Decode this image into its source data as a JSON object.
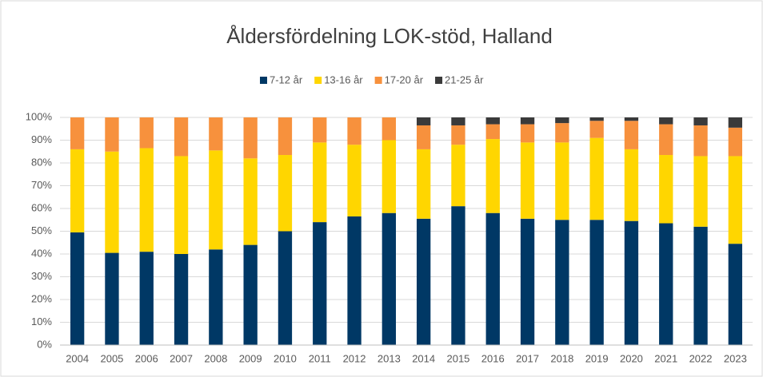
{
  "chart_data": {
    "type": "stacked_bar",
    "title": "Åldersfördelning LOK-stöd, Halland",
    "categories": [
      "2004",
      "2005",
      "2006",
      "2007",
      "2008",
      "2009",
      "2010",
      "2011",
      "2012",
      "2013",
      "2014",
      "2015",
      "2016",
      "2017",
      "2018",
      "2019",
      "2020",
      "2021",
      "2022",
      "2023"
    ],
    "series": [
      {
        "name": "7-12 år",
        "color": "#003865",
        "values": [
          49.5,
          40.5,
          41,
          40,
          42,
          44,
          50,
          54,
          56.5,
          58,
          55.5,
          61,
          58,
          55.5,
          55,
          55,
          54.5,
          53.5,
          52,
          44.5
        ]
      },
      {
        "name": "13-16 år",
        "color": "#ffd600",
        "values": [
          36.5,
          44.5,
          45.5,
          43,
          43.5,
          38,
          33.5,
          35,
          31.5,
          32,
          30.5,
          27,
          32.5,
          33.5,
          34,
          36,
          31.5,
          30,
          31,
          38.5
        ]
      },
      {
        "name": "17-20 år",
        "color": "#f7913d",
        "values": [
          14,
          15,
          13.5,
          17,
          14.5,
          18,
          16.5,
          11,
          12,
          10,
          10.5,
          8.5,
          6.5,
          8,
          8.5,
          7.5,
          12.5,
          13.5,
          13.5,
          12.5
        ]
      },
      {
        "name": "21-25 år",
        "color": "#3a3a3a",
        "values": [
          0,
          0,
          0,
          0,
          0,
          0,
          0,
          0,
          0,
          0,
          3.5,
          3.5,
          3,
          3,
          2.5,
          1.5,
          1.5,
          3,
          3.5,
          4.5
        ]
      }
    ],
    "ylim": [
      0,
      100
    ],
    "yticks": [
      {
        "value": 0,
        "label": "0%"
      },
      {
        "value": 10,
        "label": "10%"
      },
      {
        "value": 20,
        "label": "20%"
      },
      {
        "value": 30,
        "label": "30%"
      },
      {
        "value": 40,
        "label": "40%"
      },
      {
        "value": 50,
        "label": "50%"
      },
      {
        "value": 60,
        "label": "60%"
      },
      {
        "value": 70,
        "label": "70%"
      },
      {
        "value": 80,
        "label": "80%"
      },
      {
        "value": 90,
        "label": "90%"
      },
      {
        "value": 100,
        "label": "100%"
      }
    ],
    "grid": true,
    "legend": "top"
  }
}
